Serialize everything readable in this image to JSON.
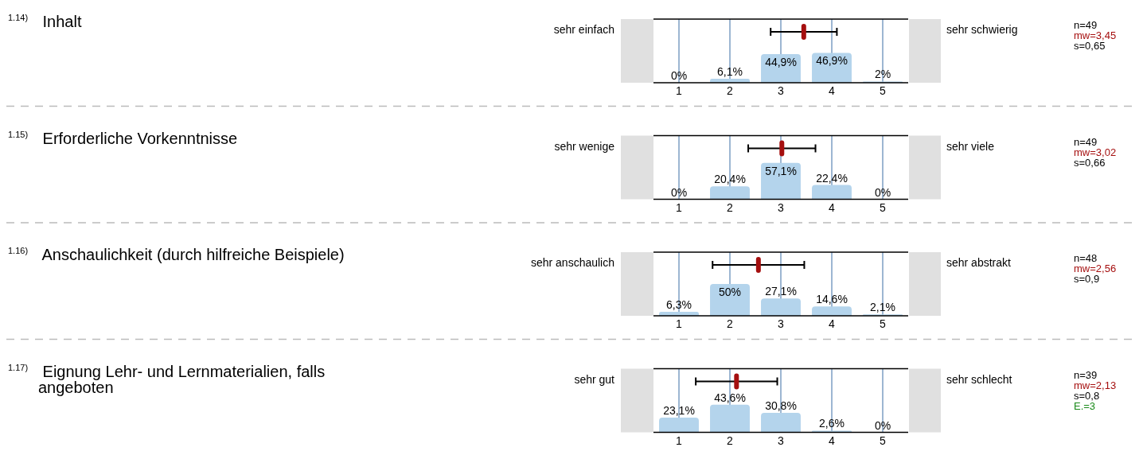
{
  "chart_data": [
    {
      "type": "bar",
      "title": "$^{1.14)}$ Inhalt",
      "x": [
        1,
        2,
        3,
        4,
        5
      ],
      "xlim": [
        0.5,
        5.5
      ],
      "xticks": [
        1,
        2,
        3,
        4,
        5
      ],
      "tick_labels": "x",
      "grid": "x",
      "annotations": [
        "sehr einfach",
        "sehr schwierig",
        "n=49",
        "s=0,65"
      ],
      "series": [
        {
          "type": "bar",
          "color": "#b4d4ec",
          "values": [
            0,
            6.1,
            44.9,
            46.9,
            2
          ],
          "value_labels": [
            "0%",
            "6,1%",
            "44,9%",
            "46,9%",
            "2%"
          ]
        },
        {
          "type": "scatter",
          "name": "mw=3,45",
          "color": "#a50f0f",
          "x": [
            3.45
          ],
          "values": [
            80
          ],
          "xerrors": [
            0.65
          ]
        }
      ]
    },
    {
      "type": "bar",
      "title": "$^{1.15)}$ Erforderliche Vorkenntnisse",
      "x": [
        1,
        2,
        3,
        4,
        5
      ],
      "xlim": [
        0.5,
        5.5
      ],
      "xticks": [
        1,
        2,
        3,
        4,
        5
      ],
      "tick_labels": "x",
      "grid": "x",
      "annotations": [
        "sehr wenige",
        "sehr viele",
        "n=49",
        "s=0,66"
      ],
      "series": [
        {
          "type": "bar",
          "color": "#b4d4ec",
          "values": [
            0,
            20.4,
            57.1,
            22.4,
            0
          ],
          "value_labels": [
            "0%",
            "20,4%",
            "57,1%",
            "22,4%",
            "0%"
          ]
        },
        {
          "type": "scatter",
          "name": "mw=3,02",
          "color": "#a50f0f",
          "x": [
            3.02
          ],
          "values": [
            80
          ],
          "xerrors": [
            0.66
          ]
        }
      ]
    },
    {
      "type": "bar",
      "title": "$^{1.16)}$ Anschaulichkeit (durch hilfreiche Beispiele)",
      "x": [
        1,
        2,
        3,
        4,
        5
      ],
      "xlim": [
        0.5,
        5.5
      ],
      "xticks": [
        1,
        2,
        3,
        4,
        5
      ],
      "tick_labels": "x",
      "grid": "x",
      "annotations": [
        "sehr anschaulich",
        "sehr abstrakt",
        "n=48",
        "s=0,9"
      ],
      "series": [
        {
          "type": "bar",
          "color": "#b4d4ec",
          "values": [
            6.3,
            50,
            27.1,
            14.6,
            2.1
          ],
          "value_labels": [
            "6,3%",
            "50%",
            "27,1%",
            "14,6%",
            "2,1%"
          ]
        },
        {
          "type": "scatter",
          "name": "mw=2,56",
          "color": "#a50f0f",
          "x": [
            2.56
          ],
          "values": [
            80
          ],
          "xerrors": [
            0.9
          ]
        }
      ]
    },
    {
      "type": "bar",
      "title": "$^{1.17)}$ Eignung Lehr- und Lernmaterialien, falls angeboten",
      "x": [
        1,
        2,
        3,
        4,
        5
      ],
      "xlim": [
        0.5,
        5.5
      ],
      "xticks": [
        1,
        2,
        3,
        4,
        5
      ],
      "tick_labels": "x",
      "grid": "x",
      "annotations": [
        "sehr gut",
        "sehr schlecht",
        "n=39",
        "s=0,8",
        "E.=3"
      ],
      "series": [
        {
          "type": "bar",
          "color": "#b4d4ec",
          "values": [
            23.1,
            43.6,
            30.8,
            2.6,
            0
          ],
          "value_labels": [
            "23,1%",
            "43,6%",
            "30,8%",
            "2,6%",
            "0%"
          ]
        },
        {
          "type": "scatter",
          "name": "mw=2,13",
          "color": "#a50f0f",
          "x": [
            2.13
          ],
          "values": [
            80
          ],
          "xerrors": [
            0.8
          ]
        }
      ]
    }
  ]
}
